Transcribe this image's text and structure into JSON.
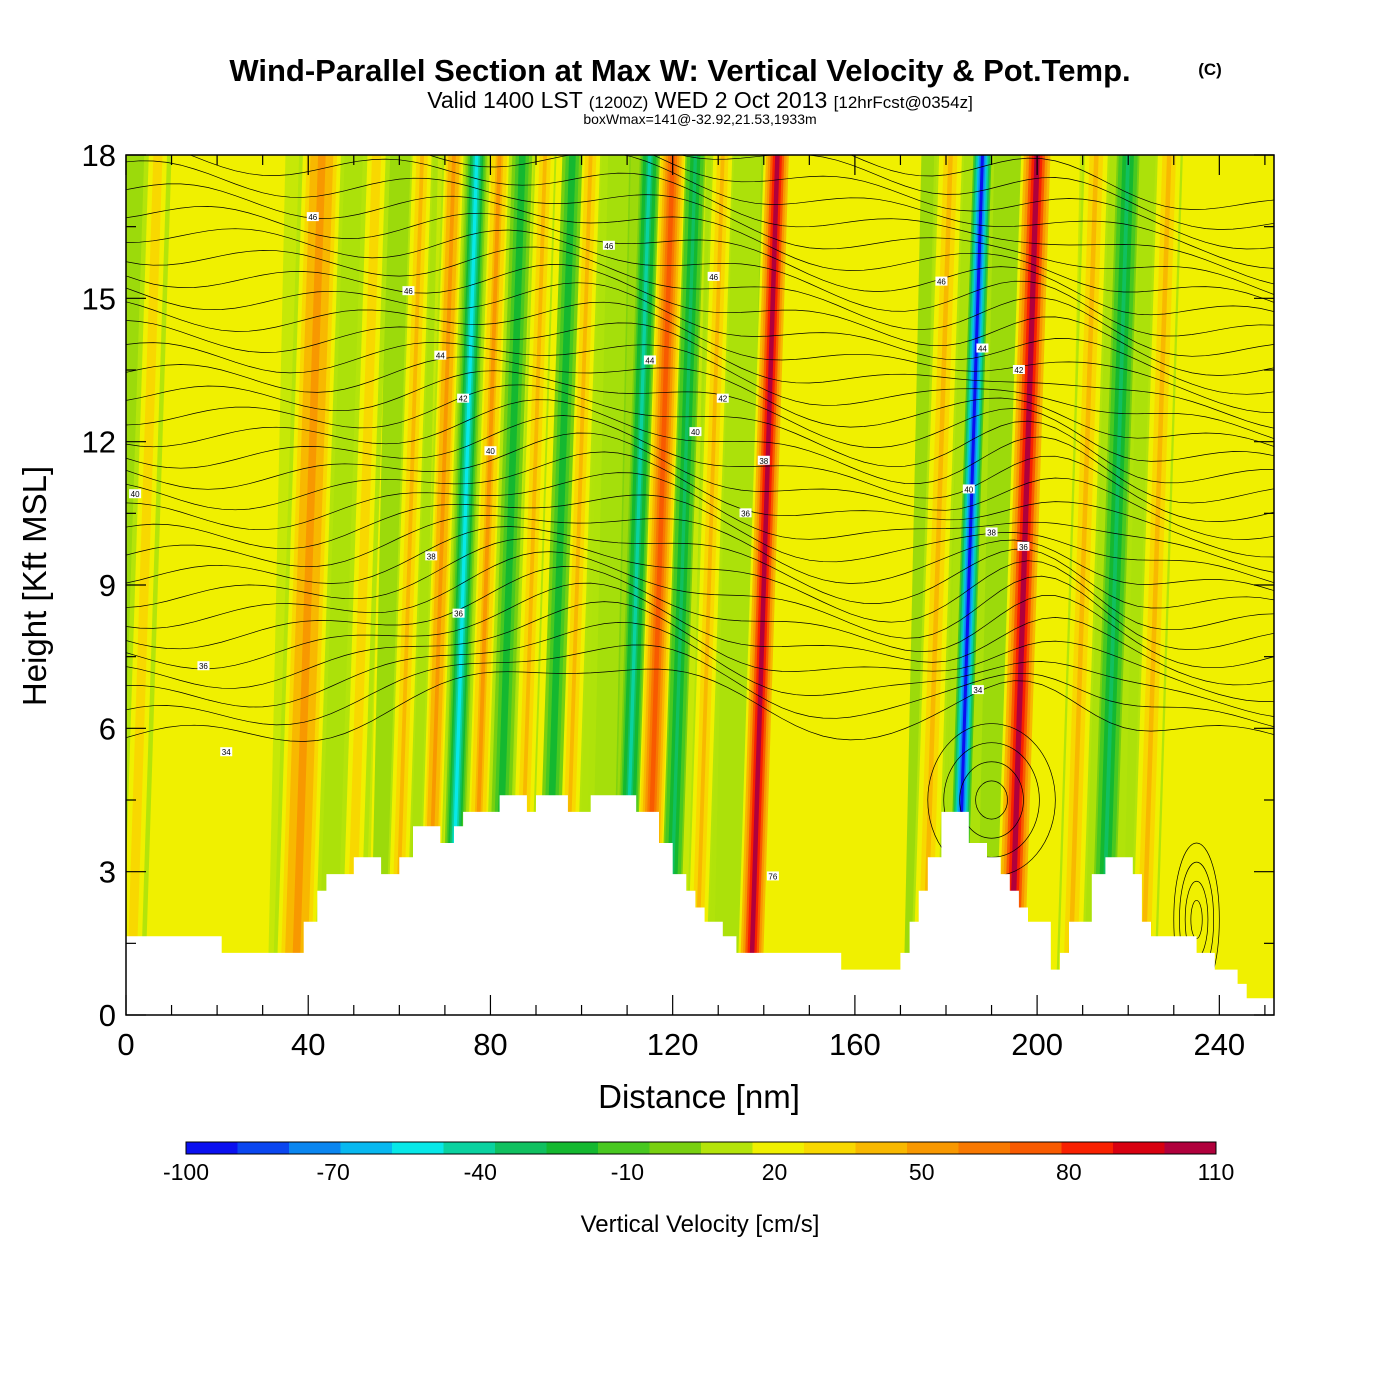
{
  "chart_data": {
    "type": "heatmap",
    "title": "Wind-Parallel Section at Max W: Vertical Velocity & Pot.Temp.",
    "copyright_mark": "(C)",
    "subtitle": {
      "valid_prefix": "Valid 1400 LST",
      "utc": "(1200Z)",
      "date": "WED 2 Oct 2013",
      "forecast": "[12hrFcst@0354z]"
    },
    "box_info": "boxWmax=141@-32.92,21.53,1933m",
    "xlabel": "Distance [nm]",
    "ylabel": "Height [Kft MSL]",
    "xlim": [
      0,
      252
    ],
    "ylim": [
      0,
      18
    ],
    "x_ticks": [
      "0",
      "40",
      "80",
      "120",
      "160",
      "200",
      "240"
    ],
    "x_tick_values": [
      0,
      40,
      80,
      120,
      160,
      200,
      240
    ],
    "y_ticks": [
      "0",
      "3",
      "6",
      "9",
      "12",
      "15",
      "18"
    ],
    "y_tick_values": [
      0,
      3,
      6,
      9,
      12,
      15,
      18
    ],
    "colorbar": {
      "title": "Vertical Velocity [cm/s]",
      "range": [
        -100,
        110
      ],
      "step": 10,
      "labels": [
        "-100",
        "-70",
        "-40",
        "-10",
        "20",
        "50",
        "80",
        "110"
      ],
      "label_values": [
        -100,
        -70,
        -40,
        -10,
        20,
        50,
        80,
        110
      ],
      "colors": [
        "#0a10f0",
        "#0a46f0",
        "#0a86f0",
        "#08b8f0",
        "#08e8e8",
        "#0ad2a0",
        "#10c060",
        "#14b830",
        "#48c820",
        "#78d010",
        "#b4e40a",
        "#f0f000",
        "#f8d800",
        "#f8b800",
        "#f89800",
        "#f87800",
        "#f85a00",
        "#f82000",
        "#d80010",
        "#b0003c"
      ]
    },
    "updraft_bands": [
      {
        "x": 4,
        "width": 3,
        "strength": 25
      },
      {
        "x": 40,
        "width": 5,
        "strength": 45
      },
      {
        "x": 52,
        "width": 3,
        "strength": 25
      },
      {
        "x": 62,
        "width": 2.5,
        "strength": 30
      },
      {
        "x": 69,
        "width": 2.5,
        "strength": 45
      },
      {
        "x": 79,
        "width": 2.5,
        "strength": 40
      },
      {
        "x": 89,
        "width": 2.5,
        "strength": 30
      },
      {
        "x": 99,
        "width": 2.5,
        "strength": 35
      },
      {
        "x": 117,
        "width": 3,
        "strength": 60
      },
      {
        "x": 128,
        "width": 2.5,
        "strength": 30
      },
      {
        "x": 140,
        "width": 3,
        "strength": 95
      },
      {
        "x": 178,
        "width": 3,
        "strength": 30
      },
      {
        "x": 197,
        "width": 3.5,
        "strength": 95
      },
      {
        "x": 210,
        "width": 3,
        "strength": 30
      },
      {
        "x": 226,
        "width": 3,
        "strength": 30
      }
    ],
    "downdraft_bands": [
      {
        "x": 74,
        "width": 2.2,
        "strength": -60
      },
      {
        "x": 84,
        "width": 2.2,
        "strength": -30
      },
      {
        "x": 95,
        "width": 2.2,
        "strength": -25
      },
      {
        "x": 112,
        "width": 2.2,
        "strength": -45
      },
      {
        "x": 122,
        "width": 2.2,
        "strength": -35
      },
      {
        "x": 185,
        "width": 2.0,
        "strength": -95
      },
      {
        "x": 217,
        "width": 2.5,
        "strength": -35
      }
    ],
    "terrain": [
      [
        0,
        1.65
      ],
      [
        21,
        1.65
      ],
      [
        21,
        1.3
      ],
      [
        39,
        1.3
      ],
      [
        39,
        1.95
      ],
      [
        42,
        1.95
      ],
      [
        42,
        2.6
      ],
      [
        44,
        2.6
      ],
      [
        44,
        2.95
      ],
      [
        50,
        2.95
      ],
      [
        50,
        3.3
      ],
      [
        56,
        3.3
      ],
      [
        56,
        2.95
      ],
      [
        60,
        2.95
      ],
      [
        60,
        3.3
      ],
      [
        63,
        3.3
      ],
      [
        63,
        3.95
      ],
      [
        69,
        3.95
      ],
      [
        69,
        3.6
      ],
      [
        72,
        3.6
      ],
      [
        72,
        3.95
      ],
      [
        74,
        3.95
      ],
      [
        74,
        4.25
      ],
      [
        82,
        4.25
      ],
      [
        82,
        4.6
      ],
      [
        88,
        4.6
      ],
      [
        88,
        4.25
      ],
      [
        90,
        4.25
      ],
      [
        90,
        4.6
      ],
      [
        97,
        4.6
      ],
      [
        97,
        4.25
      ],
      [
        102,
        4.25
      ],
      [
        102,
        4.6
      ],
      [
        112,
        4.6
      ],
      [
        112,
        4.25
      ],
      [
        117,
        4.25
      ],
      [
        117,
        3.6
      ],
      [
        120,
        3.6
      ],
      [
        120,
        2.95
      ],
      [
        123,
        2.95
      ],
      [
        123,
        2.6
      ],
      [
        125,
        2.6
      ],
      [
        125,
        2.25
      ],
      [
        127,
        2.25
      ],
      [
        127,
        1.95
      ],
      [
        131,
        1.95
      ],
      [
        131,
        1.65
      ],
      [
        134,
        1.65
      ],
      [
        134,
        1.3
      ],
      [
        157,
        1.3
      ],
      [
        157,
        0.95
      ],
      [
        170,
        0.95
      ],
      [
        170,
        1.3
      ],
      [
        172,
        1.3
      ],
      [
        172,
        1.95
      ],
      [
        174,
        1.95
      ],
      [
        174,
        2.6
      ],
      [
        176,
        2.6
      ],
      [
        176,
        3.3
      ],
      [
        179,
        3.3
      ],
      [
        179,
        4.25
      ],
      [
        185,
        4.25
      ],
      [
        185,
        3.6
      ],
      [
        189,
        3.6
      ],
      [
        189,
        3.3
      ],
      [
        192,
        3.3
      ],
      [
        192,
        2.95
      ],
      [
        194,
        2.95
      ],
      [
        194,
        2.6
      ],
      [
        196,
        2.6
      ],
      [
        196,
        2.25
      ],
      [
        198,
        2.25
      ],
      [
        198,
        1.95
      ],
      [
        203,
        1.95
      ],
      [
        203,
        0.95
      ],
      [
        205,
        0.95
      ],
      [
        205,
        1.3
      ],
      [
        207,
        1.3
      ],
      [
        207,
        1.95
      ],
      [
        212,
        1.95
      ],
      [
        212,
        2.95
      ],
      [
        215,
        2.95
      ],
      [
        215,
        3.3
      ],
      [
        221,
        3.3
      ],
      [
        221,
        2.95
      ],
      [
        223,
        2.95
      ],
      [
        223,
        1.95
      ],
      [
        225,
        1.95
      ],
      [
        225,
        1.65
      ],
      [
        235,
        1.65
      ],
      [
        235,
        1.3
      ],
      [
        239,
        1.3
      ],
      [
        239,
        0.95
      ],
      [
        244,
        0.95
      ],
      [
        244,
        0.65
      ],
      [
        246,
        0.65
      ],
      [
        246,
        0.35
      ],
      [
        252,
        0.35
      ],
      [
        252,
        0
      ],
      [
        0,
        0
      ]
    ],
    "contour_labels": [
      {
        "text": "40",
        "x": 2,
        "y": 10.9
      },
      {
        "text": "46",
        "x": 41,
        "y": 16.7
      },
      {
        "text": "46",
        "x": 62,
        "y": 15.15
      },
      {
        "text": "44",
        "x": 69,
        "y": 13.8
      },
      {
        "text": "42",
        "x": 74,
        "y": 12.9
      },
      {
        "text": "40",
        "x": 80,
        "y": 11.8
      },
      {
        "text": "38",
        "x": 67,
        "y": 9.6
      },
      {
        "text": "36",
        "x": 73,
        "y": 8.4
      },
      {
        "text": "36",
        "x": 17,
        "y": 7.3
      },
      {
        "text": "34",
        "x": 22,
        "y": 5.5
      },
      {
        "text": "46",
        "x": 106,
        "y": 16.1
      },
      {
        "text": "46",
        "x": 129,
        "y": 15.45
      },
      {
        "text": "44",
        "x": 115,
        "y": 13.7
      },
      {
        "text": "42",
        "x": 131,
        "y": 12.9
      },
      {
        "text": "40",
        "x": 125,
        "y": 12.2
      },
      {
        "text": "38",
        "x": 140,
        "y": 11.6
      },
      {
        "text": "36",
        "x": 136,
        "y": 10.5
      },
      {
        "text": "46",
        "x": 179,
        "y": 15.35
      },
      {
        "text": "44",
        "x": 188,
        "y": 13.95
      },
      {
        "text": "42",
        "x": 196,
        "y": 13.5
      },
      {
        "text": "40",
        "x": 185,
        "y": 11.0
      },
      {
        "text": "38",
        "x": 190,
        "y": 10.1
      },
      {
        "text": "36",
        "x": 197,
        "y": 9.8
      },
      {
        "text": "34",
        "x": 187,
        "y": 6.8
      },
      {
        "text": "76",
        "x": 142,
        "y": 2.9
      }
    ]
  }
}
